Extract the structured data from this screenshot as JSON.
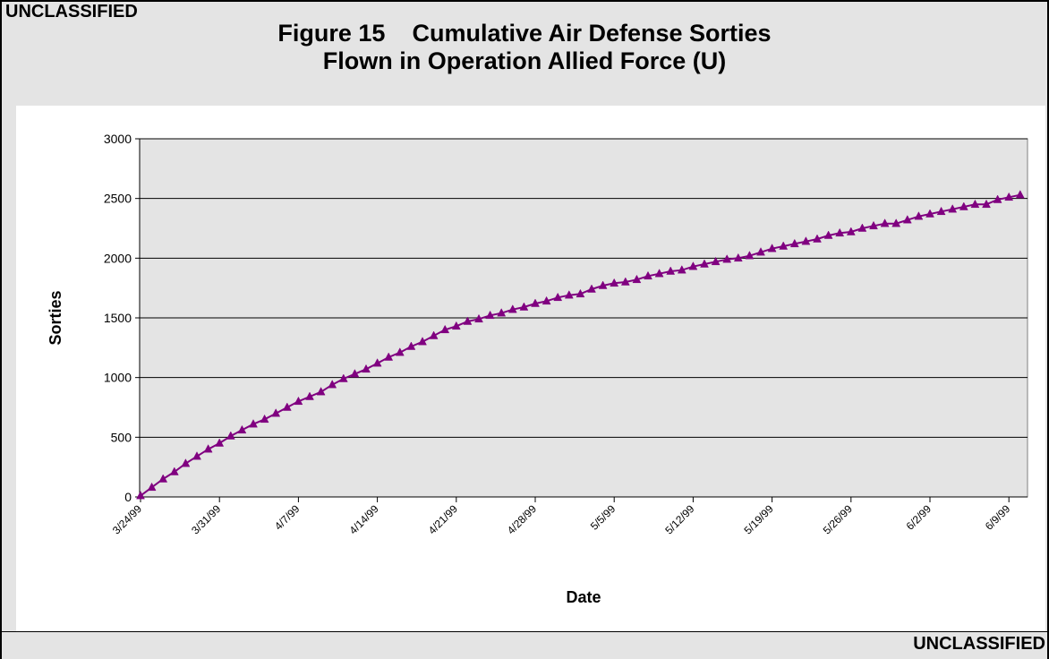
{
  "classification": {
    "top": "UNCLASSIFIED",
    "bottom": "UNCLASSIFIED"
  },
  "chart_data": {
    "type": "line",
    "title": "Figure 15    Cumulative Air Defense Sorties",
    "subtitle": "Flown in Operation Allied Force (U)",
    "xlabel": "Date",
    "ylabel": "Sorties",
    "ylim": [
      0,
      3000
    ],
    "yticks": [
      0,
      500,
      1000,
      1500,
      2000,
      2500,
      3000
    ],
    "xtick_labels": [
      "3/24/99",
      "3/31/99",
      "4/7/99",
      "4/14/99",
      "4/21/99",
      "4/28/99",
      "5/5/99",
      "5/12/99",
      "5/19/99",
      "5/26/99",
      "6/2/99",
      "6/9/99"
    ],
    "grid": "horizontal",
    "legend": "none",
    "marker": "triangle",
    "series_color": "#800080",
    "plot_background": "#e4e4e4",
    "x": [
      "3/24/99",
      "3/25/99",
      "3/26/99",
      "3/27/99",
      "3/28/99",
      "3/29/99",
      "3/30/99",
      "3/31/99",
      "4/1/99",
      "4/2/99",
      "4/3/99",
      "4/4/99",
      "4/5/99",
      "4/6/99",
      "4/7/99",
      "4/8/99",
      "4/9/99",
      "4/10/99",
      "4/11/99",
      "4/12/99",
      "4/13/99",
      "4/14/99",
      "4/15/99",
      "4/16/99",
      "4/17/99",
      "4/18/99",
      "4/19/99",
      "4/20/99",
      "4/21/99",
      "4/22/99",
      "4/23/99",
      "4/24/99",
      "4/25/99",
      "4/26/99",
      "4/27/99",
      "4/28/99",
      "4/29/99",
      "4/30/99",
      "5/1/99",
      "5/2/99",
      "5/3/99",
      "5/4/99",
      "5/5/99",
      "5/6/99",
      "5/7/99",
      "5/8/99",
      "5/9/99",
      "5/10/99",
      "5/11/99",
      "5/12/99",
      "5/13/99",
      "5/14/99",
      "5/15/99",
      "5/16/99",
      "5/17/99",
      "5/18/99",
      "5/19/99",
      "5/20/99",
      "5/21/99",
      "5/22/99",
      "5/23/99",
      "5/24/99",
      "5/25/99",
      "5/26/99",
      "5/27/99",
      "5/28/99",
      "5/29/99",
      "5/30/99",
      "5/31/99",
      "6/1/99",
      "6/2/99",
      "6/3/99",
      "6/4/99",
      "6/5/99",
      "6/6/99",
      "6/7/99",
      "6/8/99",
      "6/9/99",
      "6/10/99"
    ],
    "values": [
      10,
      80,
      150,
      210,
      280,
      340,
      400,
      450,
      510,
      560,
      610,
      650,
      700,
      750,
      800,
      840,
      880,
      940,
      990,
      1030,
      1070,
      1120,
      1170,
      1210,
      1260,
      1300,
      1350,
      1400,
      1430,
      1470,
      1490,
      1520,
      1540,
      1570,
      1590,
      1620,
      1640,
      1670,
      1690,
      1700,
      1740,
      1770,
      1790,
      1800,
      1820,
      1850,
      1870,
      1890,
      1900,
      1930,
      1950,
      1970,
      1990,
      2000,
      2020,
      2050,
      2080,
      2100,
      2120,
      2140,
      2160,
      2190,
      2210,
      2220,
      2250,
      2270,
      2290,
      2290,
      2320,
      2350,
      2370,
      2390,
      2410,
      2430,
      2450,
      2450,
      2490,
      2510,
      2530
    ]
  }
}
